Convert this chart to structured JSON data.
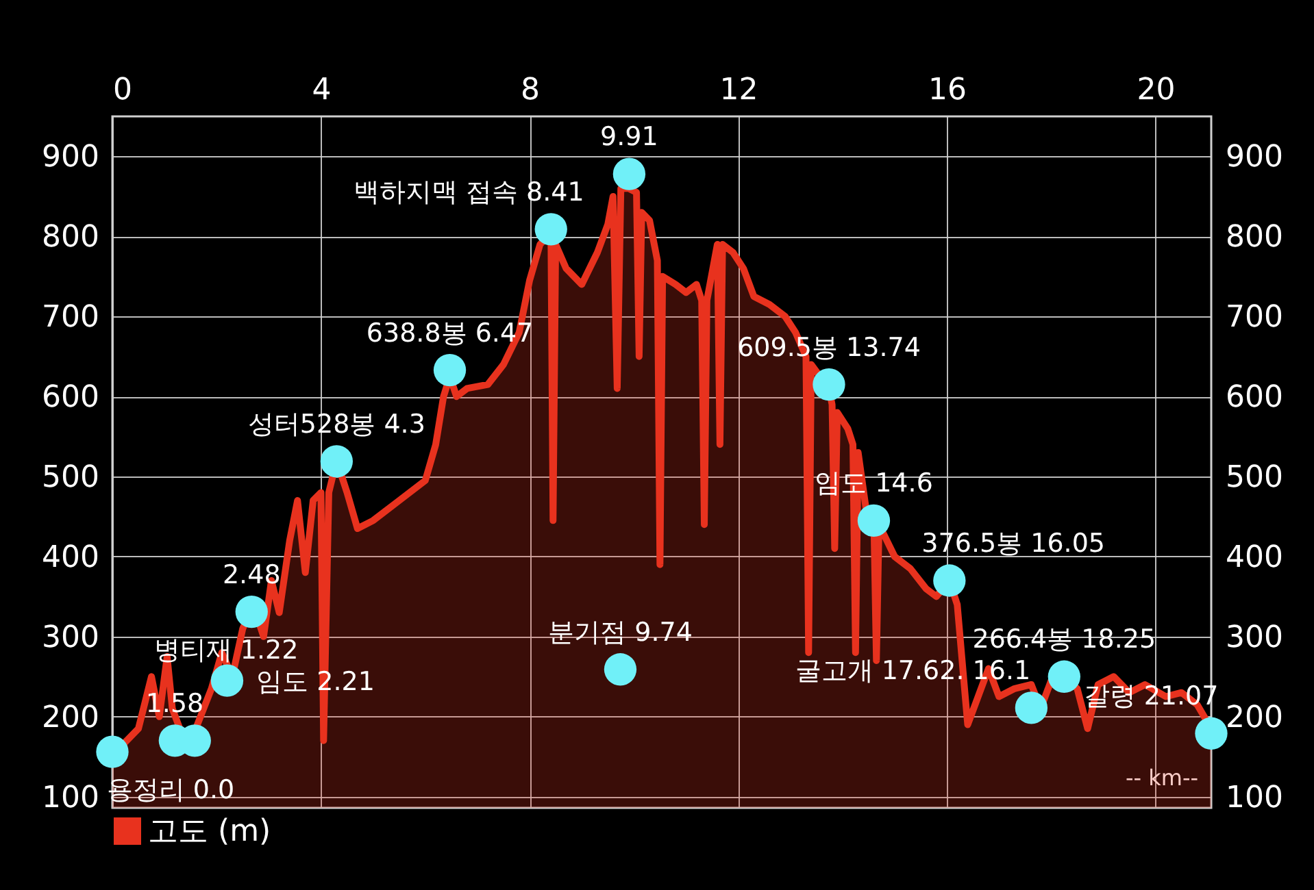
{
  "chart_data": {
    "type": "area",
    "xlabel": "-- km--",
    "xlim": [
      0,
      21.07
    ],
    "xticks": [
      0,
      4,
      8,
      12,
      16,
      20
    ],
    "ylim": [
      86,
      950
    ],
    "yticks": [
      100,
      200,
      300,
      400,
      500,
      600,
      700,
      800,
      900
    ],
    "y2lim": [
      86,
      950
    ],
    "y2ticks": [
      100,
      200,
      300,
      400,
      500,
      600,
      700,
      800,
      900
    ],
    "grid": true,
    "legend": "bottom left",
    "series": [
      {
        "name": "고도 (m)",
        "color": "#e8321e",
        "x": [
          0,
          0.2,
          0.5,
          0.75,
          0.9,
          1.05,
          1.15,
          1.35,
          1.6,
          1.9,
          2.1,
          2.3,
          2.5,
          2.7,
          2.9,
          3.05,
          3.2,
          3.4,
          3.55,
          3.7,
          3.85,
          4.0,
          4.05,
          4.15,
          4.3,
          4.5,
          4.7,
          5.0,
          5.5,
          6.0,
          6.2,
          6.35,
          6.47,
          6.6,
          6.8,
          7.2,
          7.5,
          7.8,
          8.0,
          8.2,
          8.41,
          8.45,
          8.5,
          8.7,
          9.0,
          9.3,
          9.5,
          9.6,
          9.68,
          9.75,
          9.9,
          10.05,
          10.1,
          10.15,
          10.3,
          10.45,
          10.5,
          10.55,
          10.8,
          11.0,
          11.2,
          11.3,
          11.35,
          11.4,
          11.6,
          11.65,
          11.7,
          11.9,
          12.1,
          12.3,
          12.6,
          12.9,
          13.1,
          13.3,
          13.35,
          13.4,
          13.74,
          13.8,
          13.85,
          13.9,
          14.1,
          14.2,
          14.25,
          14.3,
          14.45,
          14.6,
          14.65,
          14.7,
          15.0,
          15.3,
          15.6,
          15.8,
          16.05,
          16.2,
          16.4,
          16.6,
          16.8,
          17.0,
          17.3,
          17.62,
          17.8,
          18.0,
          18.25,
          18.5,
          18.7,
          18.9,
          19.2,
          19.5,
          19.8,
          20.2,
          20.5,
          20.8,
          21.07
        ],
        "values": [
          160,
          165,
          185,
          250,
          200,
          275,
          210,
          175,
          185,
          235,
          280,
          250,
          310,
          340,
          300,
          370,
          330,
          420,
          470,
          380,
          470,
          480,
          170,
          480,
          520,
          480,
          435,
          445,
          470,
          495,
          540,
          600,
          625,
          600,
          610,
          615,
          640,
          680,
          745,
          790,
          805,
          445,
          790,
          760,
          740,
          780,
          815,
          850,
          610,
          860,
          860,
          855,
          650,
          830,
          820,
          770,
          390,
          750,
          740,
          730,
          740,
          720,
          440,
          720,
          790,
          540,
          790,
          780,
          760,
          725,
          715,
          700,
          680,
          650,
          280,
          640,
          610,
          590,
          410,
          580,
          560,
          540,
          280,
          530,
          460,
          450,
          270,
          440,
          400,
          385,
          360,
          350,
          370,
          340,
          190,
          225,
          260,
          225,
          235,
          240,
          210,
          245,
          250,
          235,
          185,
          240,
          250,
          230,
          240,
          225,
          230,
          215,
          185
        ]
      },
      {
        "type": "scatter",
        "color": "#70f0f8",
        "marker": "circle",
        "x": [
          0,
          1.2,
          1.58,
          2.2,
          2.67,
          4.3,
          6.47,
          8.41,
          9.91,
          9.74,
          13.74,
          14.6,
          16.05,
          17.62,
          18.25,
          21.07
        ],
        "values": [
          156,
          170,
          170,
          245,
          331,
          519,
          633,
          809,
          878,
          259,
          615,
          445,
          370,
          211,
          250,
          179
        ]
      }
    ],
    "annotations": [
      {
        "text": "용정리 0.0",
        "x": 0,
        "y": 156
      },
      {
        "text": "병티재 1.22",
        "x": 1.2,
        "y": 170
      },
      {
        "text": "1.58",
        "x": 1.58,
        "y": 170
      },
      {
        "text": "임도 2.21",
        "x": 2.2,
        "y": 245
      },
      {
        "text": "2.48",
        "x": 2.67,
        "y": 331
      },
      {
        "text": "성터528봉 4.3",
        "x": 4.3,
        "y": 519
      },
      {
        "text": "638.8봉 6.47",
        "x": 6.47,
        "y": 633
      },
      {
        "text": "백하지맥 접속 8.41",
        "x": 8.41,
        "y": 809
      },
      {
        "text": "9.91",
        "x": 9.91,
        "y": 878
      },
      {
        "text": "분기점 9.74",
        "x": 9.74,
        "y": 259
      },
      {
        "text": "609.5봉 13.74",
        "x": 13.74,
        "y": 615
      },
      {
        "text": "임도 14.6",
        "x": 14.6,
        "y": 445
      },
      {
        "text": "376.5봉 16.05",
        "x": 16.05,
        "y": 370
      },
      {
        "text": "굴고개 17.62. 16.1",
        "x": 17.62,
        "y": 211
      },
      {
        "text": "266.4봉 18.25",
        "x": 18.25,
        "y": 250
      },
      {
        "text": "갈령 21.07",
        "x": 21.07,
        "y": 179
      }
    ]
  }
}
